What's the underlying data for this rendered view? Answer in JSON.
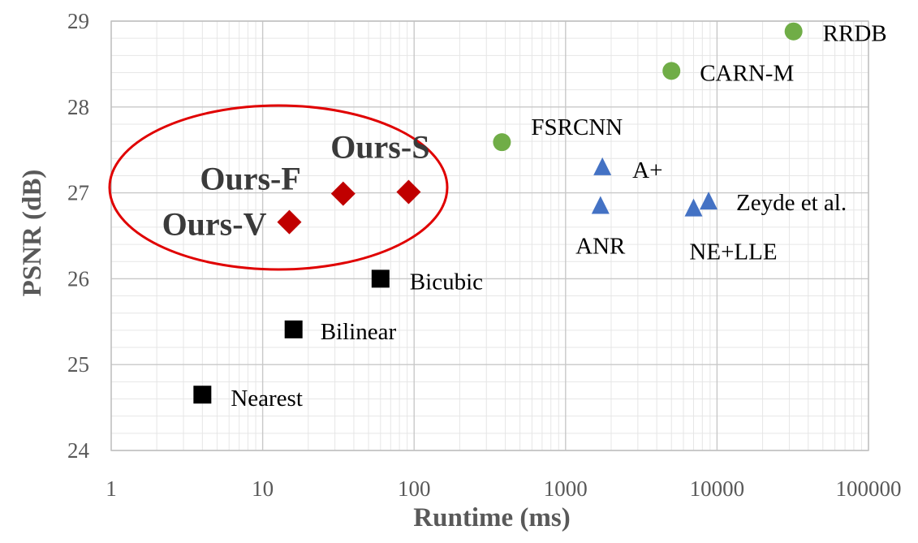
{
  "chart_data": {
    "type": "scatter",
    "title": "",
    "xlabel": "Runtime (ms)",
    "ylabel": "PSNR (dB)",
    "x_scale": "log",
    "xlim": [
      1,
      100000
    ],
    "ylim": [
      24,
      29
    ],
    "x_ticks": [
      "1",
      "10",
      "100",
      "1000",
      "10000",
      "100000"
    ],
    "y_ticks": [
      "24",
      "25",
      "26",
      "27",
      "28",
      "29"
    ],
    "grid": true,
    "colors": {
      "ours": "#c00000",
      "sparse": "#4472c4",
      "cnn": "#70ad47",
      "interp": "#000000",
      "highlight_ellipse": "#e00000"
    },
    "points": [
      {
        "label": "Nearest",
        "x": 4,
        "y": 24.65,
        "marker": "square",
        "group": "interp",
        "bold": false
      },
      {
        "label": "Bilinear",
        "x": 16,
        "y": 25.41,
        "marker": "square",
        "group": "interp",
        "bold": false
      },
      {
        "label": "Bicubic",
        "x": 60,
        "y": 26.0,
        "marker": "square",
        "group": "interp",
        "bold": false
      },
      {
        "label": "Ours-V",
        "x": 15,
        "y": 26.66,
        "marker": "diamond",
        "group": "ours",
        "bold": true
      },
      {
        "label": "Ours-F",
        "x": 34,
        "y": 26.99,
        "marker": "diamond",
        "group": "ours",
        "bold": true
      },
      {
        "label": "Ours-S",
        "x": 92,
        "y": 27.01,
        "marker": "diamond",
        "group": "ours",
        "bold": true
      },
      {
        "label": "ANR",
        "x": 1700,
        "y": 26.85,
        "marker": "triangle",
        "group": "sparse",
        "bold": false
      },
      {
        "label": "A+",
        "x": 1750,
        "y": 27.3,
        "marker": "triangle",
        "group": "sparse",
        "bold": false
      },
      {
        "label": "NE+LLE",
        "x": 7000,
        "y": 26.82,
        "marker": "triangle",
        "group": "sparse",
        "bold": false
      },
      {
        "label": "Zeyde et al.",
        "x": 8800,
        "y": 26.9,
        "marker": "triangle",
        "group": "sparse",
        "bold": false
      },
      {
        "label": "FSRCNN",
        "x": 380,
        "y": 27.59,
        "marker": "circle",
        "group": "cnn",
        "bold": false
      },
      {
        "label": "CARN-M",
        "x": 5000,
        "y": 28.42,
        "marker": "circle",
        "group": "cnn",
        "bold": false
      },
      {
        "label": "RRDB",
        "x": 32000,
        "y": 28.88,
        "marker": "circle",
        "group": "cnn",
        "bold": false
      }
    ]
  }
}
